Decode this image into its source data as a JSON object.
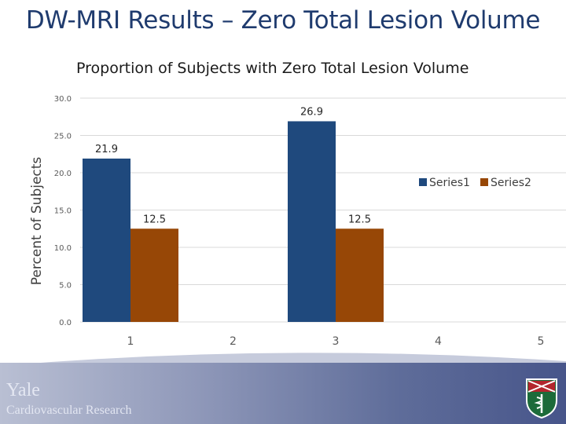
{
  "slide": {
    "title": "DW-MRI Results – Zero Total Lesion Volume"
  },
  "footer": {
    "brand_name": "Yale",
    "brand_sub": "Cardiovascular Research",
    "crest_icon": "shield-crest-icon"
  },
  "colors": {
    "title": "#1f3b6e",
    "series1": "#1f497d",
    "series2": "#974706",
    "footer_accent": "#47558a"
  },
  "chart_data": {
    "type": "bar",
    "title": "Proportion of Subjects with Zero Total Lesion Volume",
    "xlabel": "",
    "ylabel": "Percent of Subjects",
    "categories": [
      "1",
      "2",
      "3",
      "4",
      "5"
    ],
    "series": [
      {
        "name": "Series1",
        "values": [
          21.9,
          null,
          26.9,
          null,
          null
        ],
        "labels": [
          "21.9",
          "",
          "26.9",
          "",
          ""
        ]
      },
      {
        "name": "Series2",
        "values": [
          12.5,
          null,
          12.5,
          null,
          null
        ],
        "labels": [
          "12.5",
          "",
          "12.5",
          "",
          ""
        ]
      }
    ],
    "ylim": [
      0,
      30
    ],
    "yticks": [
      "0.0",
      "5.0",
      "10.0",
      "15.0",
      "20.0",
      "25.0",
      "30.0"
    ],
    "grid": true,
    "legend": "right"
  }
}
